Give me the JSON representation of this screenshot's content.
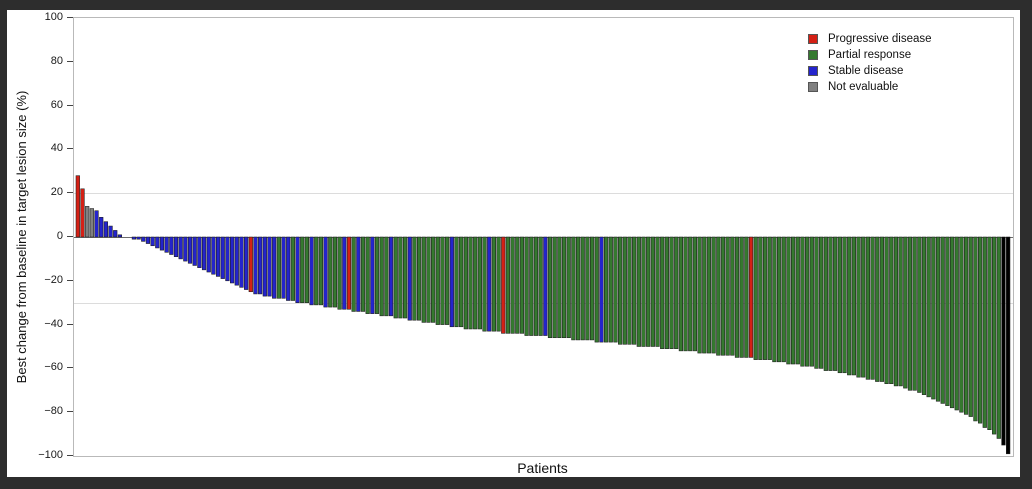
{
  "chart_data": {
    "type": "bar",
    "title": "",
    "xlabel": "Patients",
    "ylabel": "Best change from baseline in target lesion size (%)",
    "ylim": [
      -100,
      100
    ],
    "yticks": [
      100,
      80,
      60,
      40,
      20,
      0,
      -20,
      -40,
      -60,
      -80,
      -100
    ],
    "reference_lines": [
      20,
      -30
    ],
    "grid": "off",
    "legend_position": "top-right-inside",
    "status_colors": {
      "P": "#d42015",
      "G": "#35792f",
      "B": "#2424cc",
      "N": "#808080"
    },
    "legend": {
      "items": [
        {
          "label": "Progressive disease",
          "code": "P"
        },
        {
          "label": "Partial response",
          "code": "G"
        },
        {
          "label": "Stable disease",
          "code": "B"
        },
        {
          "label": "Not evaluable",
          "code": "N"
        }
      ]
    },
    "bars": {
      "description": "One bar per patient, sorted descending; status codes: P=progressive disease, G=partial response, B=stable disease, N=not evaluable",
      "values": [
        28,
        22,
        14,
        13,
        12,
        9,
        7,
        5,
        3,
        1,
        0,
        0,
        -1,
        -1,
        -2,
        -3,
        -4,
        -5,
        -6,
        -7,
        -8,
        -9,
        -10,
        -11,
        -12,
        -13,
        -14,
        -15,
        -16,
        -17,
        -18,
        -19,
        -20,
        -21,
        -22,
        -23,
        -24,
        -25,
        -26,
        -26,
        -27,
        -27,
        -28,
        -28,
        -28,
        -29,
        -29,
        -30,
        -30,
        -30,
        -31,
        -31,
        -31,
        -32,
        -32,
        -32,
        -33,
        -33,
        -33,
        -34,
        -34,
        -34,
        -35,
        -35,
        -35,
        -36,
        -36,
        -36,
        -37,
        -37,
        -37,
        -38,
        -38,
        -38,
        -39,
        -39,
        -39,
        -40,
        -40,
        -40,
        -41,
        -41,
        -41,
        -42,
        -42,
        -42,
        -42,
        -43,
        -43,
        -43,
        -43,
        -44,
        -44,
        -44,
        -44,
        -44,
        -45,
        -45,
        -45,
        -45,
        -45,
        -46,
        -46,
        -46,
        -46,
        -46,
        -47,
        -47,
        -47,
        -47,
        -47,
        -48,
        -48,
        -48,
        -48,
        -48,
        -49,
        -49,
        -49,
        -49,
        -50,
        -50,
        -50,
        -50,
        -50,
        -51,
        -51,
        -51,
        -51,
        -52,
        -52,
        -52,
        -52,
        -53,
        -53,
        -53,
        -53,
        -54,
        -54,
        -54,
        -54,
        -55,
        -55,
        -55,
        -55,
        -56,
        -56,
        -56,
        -56,
        -57,
        -57,
        -57,
        -58,
        -58,
        -58,
        -59,
        -59,
        -59,
        -60,
        -60,
        -61,
        -61,
        -61,
        -62,
        -62,
        -63,
        -63,
        -64,
        -64,
        -65,
        -65,
        -66,
        -66,
        -67,
        -67,
        -68,
        -68,
        -69,
        -70,
        -70,
        -71,
        -72,
        -73,
        -74,
        -75,
        -76,
        -77,
        -78,
        -79,
        -80,
        -81,
        -82,
        -84,
        -85,
        -87,
        -88,
        -90,
        -92,
        -95,
        -99
      ],
      "status": "PPNNBBBBBBBBBBBBBBBBBBBBBBBBBBBBBBBBBPBBBBBGBBGBGGBGGBGGGBPGBGGBGGGBGGGBGGGGGGGGBGGGGGGGBGGPGGGGGGGGBGGGGGGGGGGGBGGGGGGGGGGGGGGGGGGGGGGGGGGGGGGGPGGGGGGGGGGGGGGGGGGGGGGGGGGGGGGGGGGGGGGGGGGGGGGGGGGGGG"
    }
  }
}
